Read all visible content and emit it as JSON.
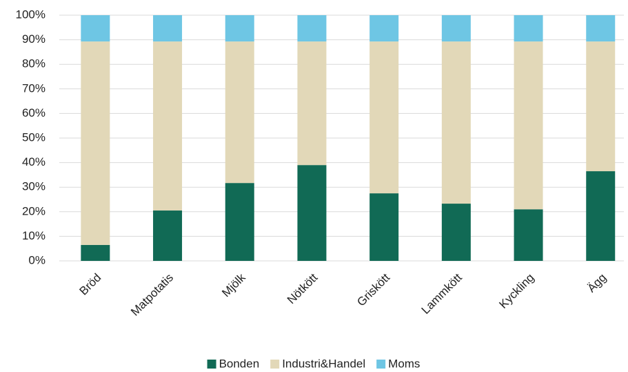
{
  "chart_data": {
    "type": "stacked_bar",
    "categories": [
      "Bröd",
      "Matpotatis",
      "Mjölk",
      "Nötkött",
      "Griskött",
      "Lammkött",
      "Kyckling",
      "Ägg"
    ],
    "series": [
      {
        "name": "Bonden",
        "color": "#116a55",
        "values": [
          6.5,
          20.5,
          31.7,
          39,
          27.5,
          23.3,
          21,
          36.5
        ]
      },
      {
        "name": "Industri&Handel",
        "color": "#e2d8b8",
        "values": [
          82.8,
          68.8,
          57.6,
          50.3,
          61.8,
          66,
          68.3,
          52.8
        ]
      },
      {
        "name": "Moms",
        "color": "#6ec6e4",
        "values": [
          10.7,
          10.7,
          10.7,
          10.7,
          10.7,
          10.7,
          10.7,
          10.7
        ]
      }
    ],
    "ylim": [
      0,
      100
    ],
    "yticks": [
      {
        "value": 0,
        "label": "0%"
      },
      {
        "value": 10,
        "label": "10%"
      },
      {
        "value": 20,
        "label": "20%"
      },
      {
        "value": 30,
        "label": "30%"
      },
      {
        "value": 40,
        "label": "40%"
      },
      {
        "value": 50,
        "label": "50%"
      },
      {
        "value": 60,
        "label": "60%"
      },
      {
        "value": 70,
        "label": "70%"
      },
      {
        "value": 80,
        "label": "80%"
      },
      {
        "value": 90,
        "label": "90%"
      },
      {
        "value": 100,
        "label": "100%"
      }
    ],
    "grid": true,
    "legend": "bottom"
  }
}
